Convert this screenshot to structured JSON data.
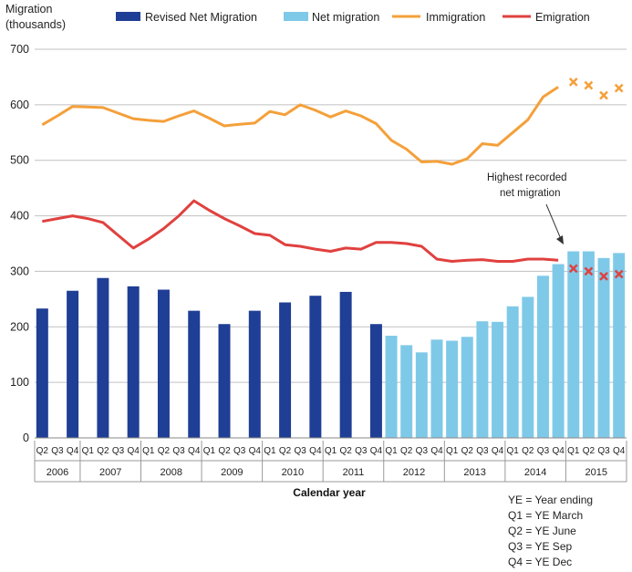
{
  "chart_data": {
    "type": "bar+line",
    "ylabel_line1": "Migration",
    "ylabel_line2": "(thousands)",
    "xlabel": "Calendar year",
    "ylim": [
      0,
      700
    ],
    "yticks": [
      "0",
      "100",
      "200",
      "300",
      "400",
      "500",
      "600",
      "700"
    ],
    "years": [
      "2006",
      "2007",
      "2008",
      "2009",
      "2010",
      "2011",
      "2012",
      "2013",
      "2014",
      "2015"
    ],
    "quarters": [
      "Q2",
      "Q3",
      "Q4",
      "Q1",
      "Q2",
      "Q3",
      "Q4",
      "Q1",
      "Q2",
      "Q3",
      "Q4",
      "Q1",
      "Q2",
      "Q3",
      "Q4",
      "Q1",
      "Q2",
      "Q3",
      "Q4",
      "Q1",
      "Q2",
      "Q3",
      "Q4",
      "Q1",
      "Q2",
      "Q3",
      "Q4",
      "Q1",
      "Q2",
      "Q3",
      "Q4",
      "Q1",
      "Q2",
      "Q3",
      "Q4",
      "Q1",
      "Q2",
      "Q3",
      "Q4"
    ],
    "year_quarter_counts": [
      3,
      4,
      4,
      4,
      4,
      4,
      4,
      4,
      4,
      4
    ],
    "legend": {
      "revised": "Revised Net Migration",
      "net": "Net migration",
      "immigration": "Immigration",
      "emigration": "Emigration"
    },
    "colors": {
      "revised": "#1f3e95",
      "net": "#7fc9e8",
      "immigration": "#f4a03a",
      "emigration": "#e0413f",
      "grid": "#c0c0c0"
    },
    "revised_net_migration": [
      233,
      null,
      265,
      null,
      288,
      null,
      273,
      null,
      267,
      null,
      229,
      null,
      205,
      null,
      229,
      null,
      244,
      null,
      256,
      null,
      263,
      null,
      205,
      null,
      null,
      null,
      null,
      null,
      null,
      null,
      null,
      null,
      null,
      null,
      null,
      null,
      null,
      null,
      null
    ],
    "net_migration": [
      null,
      null,
      null,
      null,
      null,
      null,
      null,
      null,
      null,
      null,
      null,
      null,
      null,
      null,
      null,
      null,
      null,
      null,
      null,
      null,
      null,
      null,
      null,
      184,
      167,
      154,
      177,
      175,
      182,
      210,
      209,
      237,
      254,
      292,
      313,
      336,
      336,
      324,
      333
    ],
    "immigration": [
      564,
      580,
      597,
      596,
      595,
      585,
      575,
      572,
      570,
      580,
      589,
      576,
      562,
      565,
      567,
      588,
      582,
      600,
      590,
      578,
      589,
      580,
      566,
      536,
      520,
      497,
      498,
      493,
      503,
      530,
      527,
      550,
      573,
      614,
      632,
      null,
      null,
      null,
      null
    ],
    "immigration_provisional": [
      null,
      null,
      null,
      null,
      null,
      null,
      null,
      null,
      null,
      null,
      null,
      null,
      null,
      null,
      null,
      null,
      null,
      null,
      null,
      null,
      null,
      null,
      null,
      null,
      null,
      null,
      null,
      null,
      null,
      null,
      null,
      null,
      null,
      null,
      null,
      641,
      635,
      617,
      630
    ],
    "emigration": [
      390,
      395,
      400,
      395,
      388,
      365,
      342,
      358,
      377,
      400,
      427,
      410,
      395,
      382,
      368,
      365,
      348,
      345,
      340,
      336,
      342,
      340,
      352,
      352,
      350,
      345,
      322,
      318,
      320,
      321,
      318,
      318,
      322,
      322,
      320,
      null,
      null,
      null,
      null
    ],
    "emigration_provisional": [
      null,
      null,
      null,
      null,
      null,
      null,
      null,
      null,
      null,
      null,
      null,
      null,
      null,
      null,
      null,
      null,
      null,
      null,
      null,
      null,
      null,
      null,
      null,
      null,
      null,
      null,
      null,
      null,
      null,
      null,
      null,
      null,
      null,
      null,
      null,
      305,
      300,
      291,
      295
    ],
    "annotation_line1": "Highest recorded",
    "annotation_line2": "net migration",
    "notes": [
      "YE = Year ending",
      "Q1 = YE March",
      "Q2 = YE June",
      "Q3 = YE Sep",
      "Q4 = YE Dec"
    ]
  }
}
